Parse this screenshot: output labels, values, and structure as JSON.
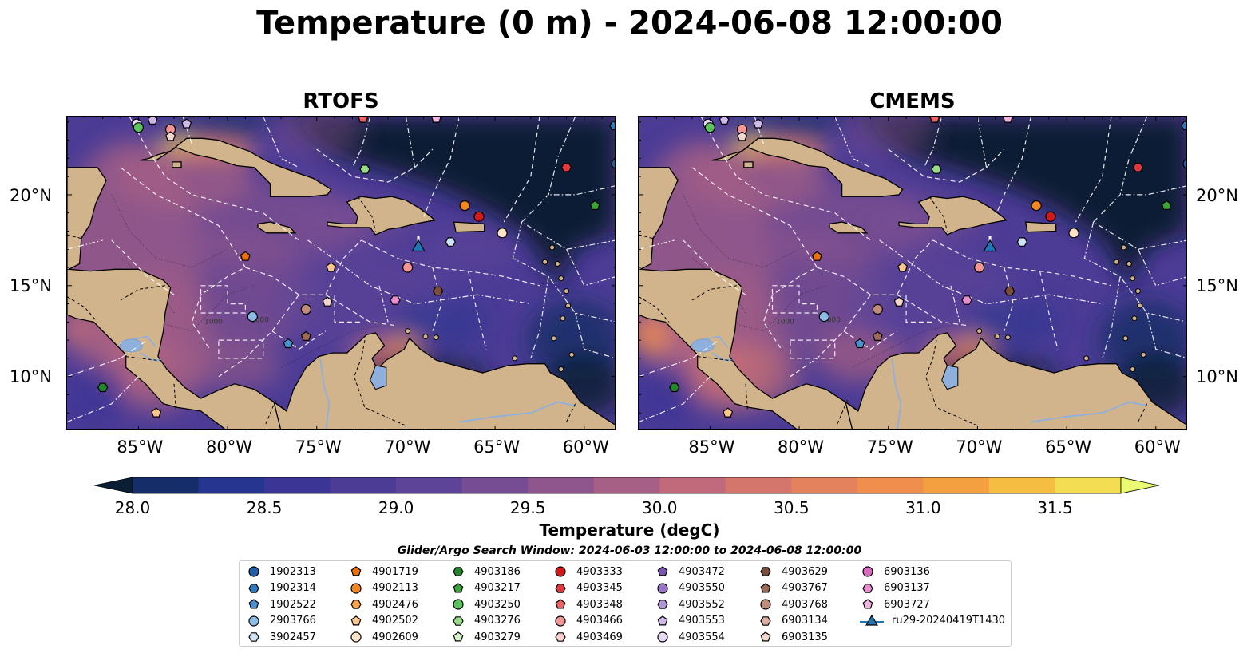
{
  "figure": {
    "title": "Temperature (0 m) - 2024-06-08 12:00:00",
    "panels": [
      {
        "title": "RTOFS"
      },
      {
        "title": "CMEMS"
      }
    ],
    "lon_ticks": [
      "85°W",
      "80°W",
      "75°W",
      "70°W",
      "65°W",
      "60°W"
    ],
    "lat_ticks": [
      "20°N",
      "15°N",
      "10°N"
    ],
    "contour_label": "1000"
  },
  "colorbar": {
    "label": "Temperature (degC)",
    "ticks": [
      "28.0",
      "28.5",
      "29.0",
      "29.5",
      "30.0",
      "30.5",
      "31.0",
      "31.5"
    ],
    "min": 28.0,
    "max": 31.5,
    "step": 0.25,
    "extend": "both",
    "colors": [
      "#0a1f35",
      "#152d68",
      "#263590",
      "#3b3596",
      "#4c3c96",
      "#5e4498",
      "#764d93",
      "#8e568d",
      "#a65f85",
      "#c16a7b",
      "#d5766d",
      "#e4825e",
      "#ef8e4d",
      "#f5a040",
      "#f5bd42",
      "#f2dd53",
      "#ebfb72"
    ]
  },
  "legend": {
    "title": "Glider/Argo Search Window: 2024-06-03 12:00:00 to 2024-06-08 12:00:00",
    "items": [
      {
        "label": "1902313",
        "marker": "circle",
        "color": "#1f5fa8"
      },
      {
        "label": "1902314",
        "marker": "hexagon",
        "color": "#2f7bc0"
      },
      {
        "label": "1902522",
        "marker": "pentagon",
        "color": "#4a91d0"
      },
      {
        "label": "2903766",
        "marker": "circle",
        "color": "#8dbde6"
      },
      {
        "label": "3902457",
        "marker": "hexagon",
        "color": "#cfe4f5"
      },
      {
        "label": "4901719",
        "marker": "pentagon",
        "color": "#e8720c"
      },
      {
        "label": "4902113",
        "marker": "circle",
        "color": "#f5871f"
      },
      {
        "label": "4902476",
        "marker": "hexagon",
        "color": "#f9a552"
      },
      {
        "label": "4902502",
        "marker": "pentagon",
        "color": "#fbc58e"
      },
      {
        "label": "4902609",
        "marker": "circle",
        "color": "#fde3c8"
      },
      {
        "label": "4903186",
        "marker": "hexagon",
        "color": "#22862a"
      },
      {
        "label": "4903217",
        "marker": "pentagon",
        "color": "#3aa43a"
      },
      {
        "label": "4903250",
        "marker": "circle",
        "color": "#5cc45c"
      },
      {
        "label": "4903276",
        "marker": "hexagon",
        "color": "#98dc8a"
      },
      {
        "label": "4903279",
        "marker": "pentagon",
        "color": "#d5f2c9"
      },
      {
        "label": "4903333",
        "marker": "circle",
        "color": "#d1191c"
      },
      {
        "label": "4903345",
        "marker": "hexagon",
        "color": "#e13a3e"
      },
      {
        "label": "4903348",
        "marker": "pentagon",
        "color": "#ec6466"
      },
      {
        "label": "4903466",
        "marker": "circle",
        "color": "#f49596"
      },
      {
        "label": "4903469",
        "marker": "hexagon",
        "color": "#fbcfcf"
      },
      {
        "label": "4903472",
        "marker": "pentagon",
        "color": "#7d54b5"
      },
      {
        "label": "4903550",
        "marker": "circle",
        "color": "#9a75c9"
      },
      {
        "label": "4903552",
        "marker": "hexagon",
        "color": "#b596da"
      },
      {
        "label": "4903553",
        "marker": "pentagon",
        "color": "#cfb8ea"
      },
      {
        "label": "4903554",
        "marker": "circle",
        "color": "#e6d9f5"
      },
      {
        "label": "4903629",
        "marker": "hexagon",
        "color": "#7b4c3a"
      },
      {
        "label": "4903767",
        "marker": "pentagon",
        "color": "#9c6a56"
      },
      {
        "label": "4903768",
        "marker": "circle",
        "color": "#c08d7c"
      },
      {
        "label": "6903134",
        "marker": "hexagon",
        "color": "#deb0a3"
      },
      {
        "label": "6903135",
        "marker": "pentagon",
        "color": "#f5d6cc"
      },
      {
        "label": "6903136",
        "marker": "circle",
        "color": "#d86bbf"
      },
      {
        "label": "6903137",
        "marker": "hexagon",
        "color": "#e78fd0"
      },
      {
        "label": "6903727",
        "marker": "pentagon",
        "color": "#f2b4e1"
      },
      {
        "label": "ru29-20240419T1430",
        "marker": "triangle-line",
        "color": "#1f77b4"
      }
    ]
  },
  "floats": [
    {
      "id": "4903554",
      "lon": -85.1,
      "lat": 23.9
    },
    {
      "id": "4903250",
      "lon": -85.0,
      "lat": 23.7
    },
    {
      "id": "4903553",
      "lon": -84.2,
      "lat": 24.1
    },
    {
      "id": "4903466",
      "lon": -83.2,
      "lat": 23.6
    },
    {
      "id": "6903135",
      "lon": -83.2,
      "lat": 23.2
    },
    {
      "id": "4903553",
      "lon": -82.3,
      "lat": 23.9
    },
    {
      "id": "4903348",
      "lon": -72.4,
      "lat": 24.2
    },
    {
      "id": "6903727",
      "lon": -68.3,
      "lat": 24.2
    },
    {
      "id": "1902314",
      "lon": -58.3,
      "lat": 23.8
    },
    {
      "id": "4903276",
      "lon": -72.3,
      "lat": 21.4
    },
    {
      "id": "4903345",
      "lon": -61.0,
      "lat": 21.5
    },
    {
      "id": "1902313",
      "lon": -58.2,
      "lat": 21.7
    },
    {
      "id": "4903217",
      "lon": -59.4,
      "lat": 19.4
    },
    {
      "id": "4902113",
      "lon": -66.7,
      "lat": 19.4
    },
    {
      "id": "4903333",
      "lon": -65.9,
      "lat": 18.8
    },
    {
      "id": "4902609",
      "lon": -64.6,
      "lat": 17.9
    },
    {
      "id": "3902457",
      "lon": -67.5,
      "lat": 17.4
    },
    {
      "id": "4901719",
      "lon": -79.0,
      "lat": 16.6
    },
    {
      "id": "4902502",
      "lon": -74.2,
      "lat": 16.0
    },
    {
      "id": "4903466",
      "lon": -69.9,
      "lat": 16.0
    },
    {
      "id": "4903629",
      "lon": -68.2,
      "lat": 14.7
    },
    {
      "id": "6903137",
      "lon": -70.6,
      "lat": 14.2
    },
    {
      "id": "6903135",
      "lon": -74.4,
      "lat": 14.1
    },
    {
      "id": "4903768",
      "lon": -75.6,
      "lat": 13.7
    },
    {
      "id": "2903766",
      "lon": -78.6,
      "lat": 13.3
    },
    {
      "id": "1902522",
      "lon": -76.6,
      "lat": 11.8
    },
    {
      "id": "4903767",
      "lon": -75.6,
      "lat": 12.2
    },
    {
      "id": "4903186",
      "lon": -87.0,
      "lat": 9.4
    },
    {
      "id": "4902502",
      "lon": -84.0,
      "lat": 8.0
    }
  ],
  "glider": {
    "id": "ru29-20240419T1430",
    "lon": -69.3,
    "lat": 17.1
  }
}
